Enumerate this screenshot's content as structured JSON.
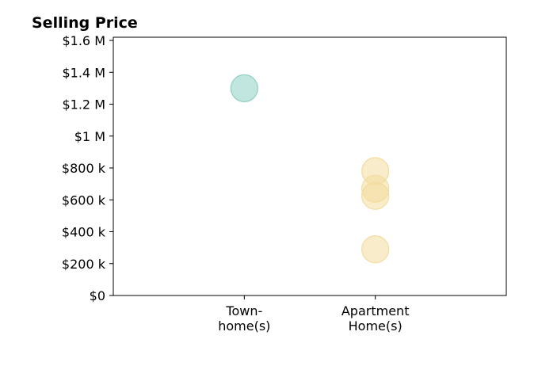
{
  "chart_data": {
    "type": "scatter",
    "title": "Selling Price",
    "xlabel": "",
    "ylabel": "",
    "categories": [
      [
        "Town-",
        "home(s)"
      ],
      [
        "Apartment",
        "Home(s)"
      ]
    ],
    "y_ticks": [
      {
        "value": 0,
        "label": "$0"
      },
      {
        "value": 200000,
        "label": "$200 k"
      },
      {
        "value": 400000,
        "label": "$400 k"
      },
      {
        "value": 600000,
        "label": "$600 k"
      },
      {
        "value": 800000,
        "label": "$800 k"
      },
      {
        "value": 1000000,
        "label": "$1 M"
      },
      {
        "value": 1200000,
        "label": "$1.2 M"
      },
      {
        "value": 1400000,
        "label": "$1.4 M"
      },
      {
        "value": 1600000,
        "label": "$1.6 M"
      }
    ],
    "ylim": [
      0,
      1620000
    ],
    "xlim": [
      -1,
      2
    ],
    "grid": false,
    "series": [
      {
        "category_index": 0,
        "color": "#8ecfc4",
        "values": [
          1300000
        ]
      },
      {
        "category_index": 1,
        "color": "#f2dc9e",
        "values": [
          780000,
          670000,
          625000,
          290000
        ]
      }
    ]
  }
}
